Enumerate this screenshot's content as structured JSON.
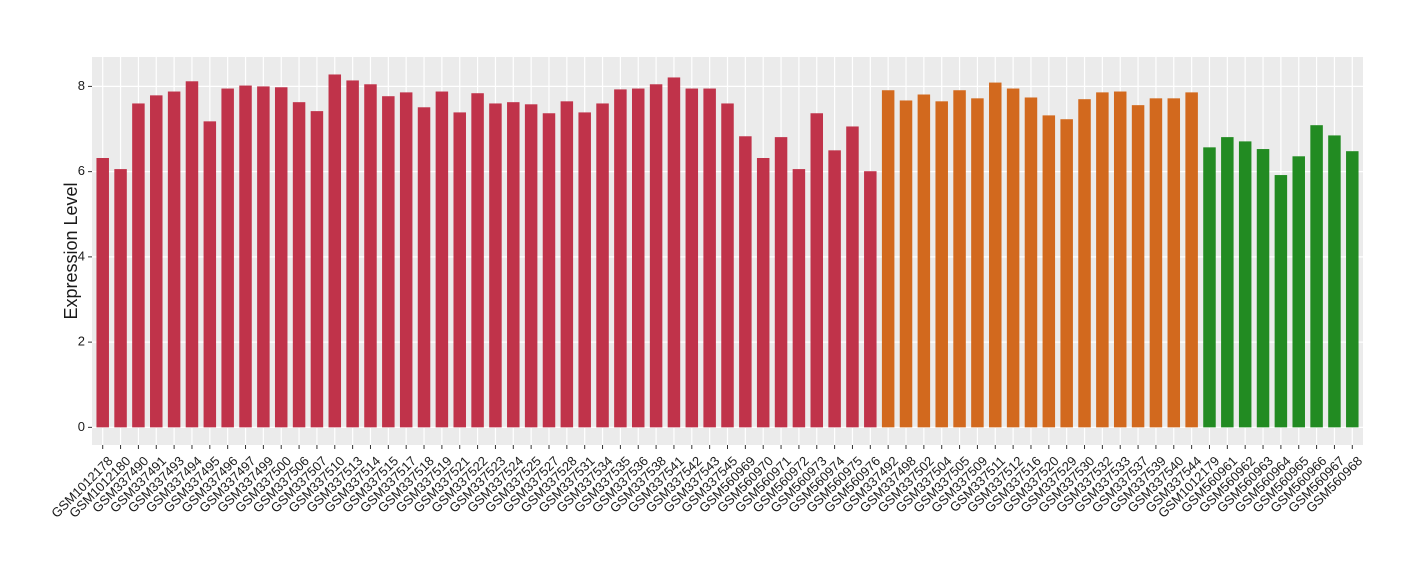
{
  "chart_data": {
    "type": "bar",
    "y_label": "Expression Level",
    "categories": [
      "GSM1012178",
      "GSM1012180",
      "GSM337490",
      "GSM337491",
      "GSM337493",
      "GSM337494",
      "GSM337495",
      "GSM337496",
      "GSM337497",
      "GSM337499",
      "GSM337500",
      "GSM337506",
      "GSM337507",
      "GSM337510",
      "GSM337513",
      "GSM337514",
      "GSM337515",
      "GSM337517",
      "GSM337518",
      "GSM337519",
      "GSM337521",
      "GSM337522",
      "GSM337523",
      "GSM337524",
      "GSM337525",
      "GSM337527",
      "GSM337528",
      "GSM337531",
      "GSM337534",
      "GSM337535",
      "GSM337536",
      "GSM337538",
      "GSM337541",
      "GSM337542",
      "GSM337543",
      "GSM337545",
      "GSM560969",
      "GSM560970",
      "GSM560971",
      "GSM560972",
      "GSM560973",
      "GSM560974",
      "GSM560975",
      "GSM560976",
      "GSM337492",
      "GSM337498",
      "GSM337502",
      "GSM337504",
      "GSM337505",
      "GSM337509",
      "GSM337511",
      "GSM337512",
      "GSM337516",
      "GSM337520",
      "GSM337529",
      "GSM337530",
      "GSM337532",
      "GSM337533",
      "GSM337537",
      "GSM337539",
      "GSM337540",
      "GSM337544",
      "GSM1012179",
      "GSM560961",
      "GSM560962",
      "GSM560963",
      "GSM560964",
      "GSM560965",
      "GSM560966",
      "GSM560967",
      "GSM560968"
    ],
    "values": [
      6.32,
      6.06,
      7.6,
      7.79,
      7.88,
      8.12,
      7.18,
      7.95,
      8.02,
      8.0,
      7.98,
      7.63,
      7.42,
      8.28,
      8.14,
      8.05,
      7.77,
      7.86,
      7.51,
      7.88,
      7.39,
      7.84,
      7.6,
      7.63,
      7.58,
      7.37,
      7.65,
      7.39,
      7.6,
      7.93,
      7.95,
      8.05,
      8.21,
      7.95,
      7.95,
      7.6,
      6.83,
      6.32,
      6.81,
      6.06,
      7.37,
      6.5,
      7.06,
      6.01,
      7.91,
      7.67,
      7.81,
      7.65,
      7.91,
      7.72,
      8.09,
      7.95,
      7.74,
      7.32,
      7.23,
      7.7,
      7.86,
      7.88,
      7.56,
      7.72,
      7.72,
      7.86,
      6.57,
      6.81,
      6.71,
      6.53,
      5.92,
      6.36,
      7.09,
      6.85,
      6.48
    ],
    "colors": [
      "#c0334a",
      "#c0334a",
      "#c0334a",
      "#c0334a",
      "#c0334a",
      "#c0334a",
      "#c0334a",
      "#c0334a",
      "#c0334a",
      "#c0334a",
      "#c0334a",
      "#c0334a",
      "#c0334a",
      "#c0334a",
      "#c0334a",
      "#c0334a",
      "#c0334a",
      "#c0334a",
      "#c0334a",
      "#c0334a",
      "#c0334a",
      "#c0334a",
      "#c0334a",
      "#c0334a",
      "#c0334a",
      "#c0334a",
      "#c0334a",
      "#c0334a",
      "#c0334a",
      "#c0334a",
      "#c0334a",
      "#c0334a",
      "#c0334a",
      "#c0334a",
      "#c0334a",
      "#c0334a",
      "#c0334a",
      "#c0334a",
      "#c0334a",
      "#c0334a",
      "#c0334a",
      "#c0334a",
      "#c0334a",
      "#c0334a",
      "#d2691e",
      "#d2691e",
      "#d2691e",
      "#d2691e",
      "#d2691e",
      "#d2691e",
      "#d2691e",
      "#d2691e",
      "#d2691e",
      "#d2691e",
      "#d2691e",
      "#d2691e",
      "#d2691e",
      "#d2691e",
      "#d2691e",
      "#d2691e",
      "#d2691e",
      "#d2691e",
      "#228b22",
      "#228b22",
      "#228b22",
      "#228b22",
      "#228b22",
      "#228b22",
      "#228b22",
      "#228b22",
      "#228b22"
    ],
    "ylim": [
      -0.414,
      8.69
    ],
    "yticks": [
      0,
      2,
      4,
      6,
      8
    ],
    "grid": true
  }
}
